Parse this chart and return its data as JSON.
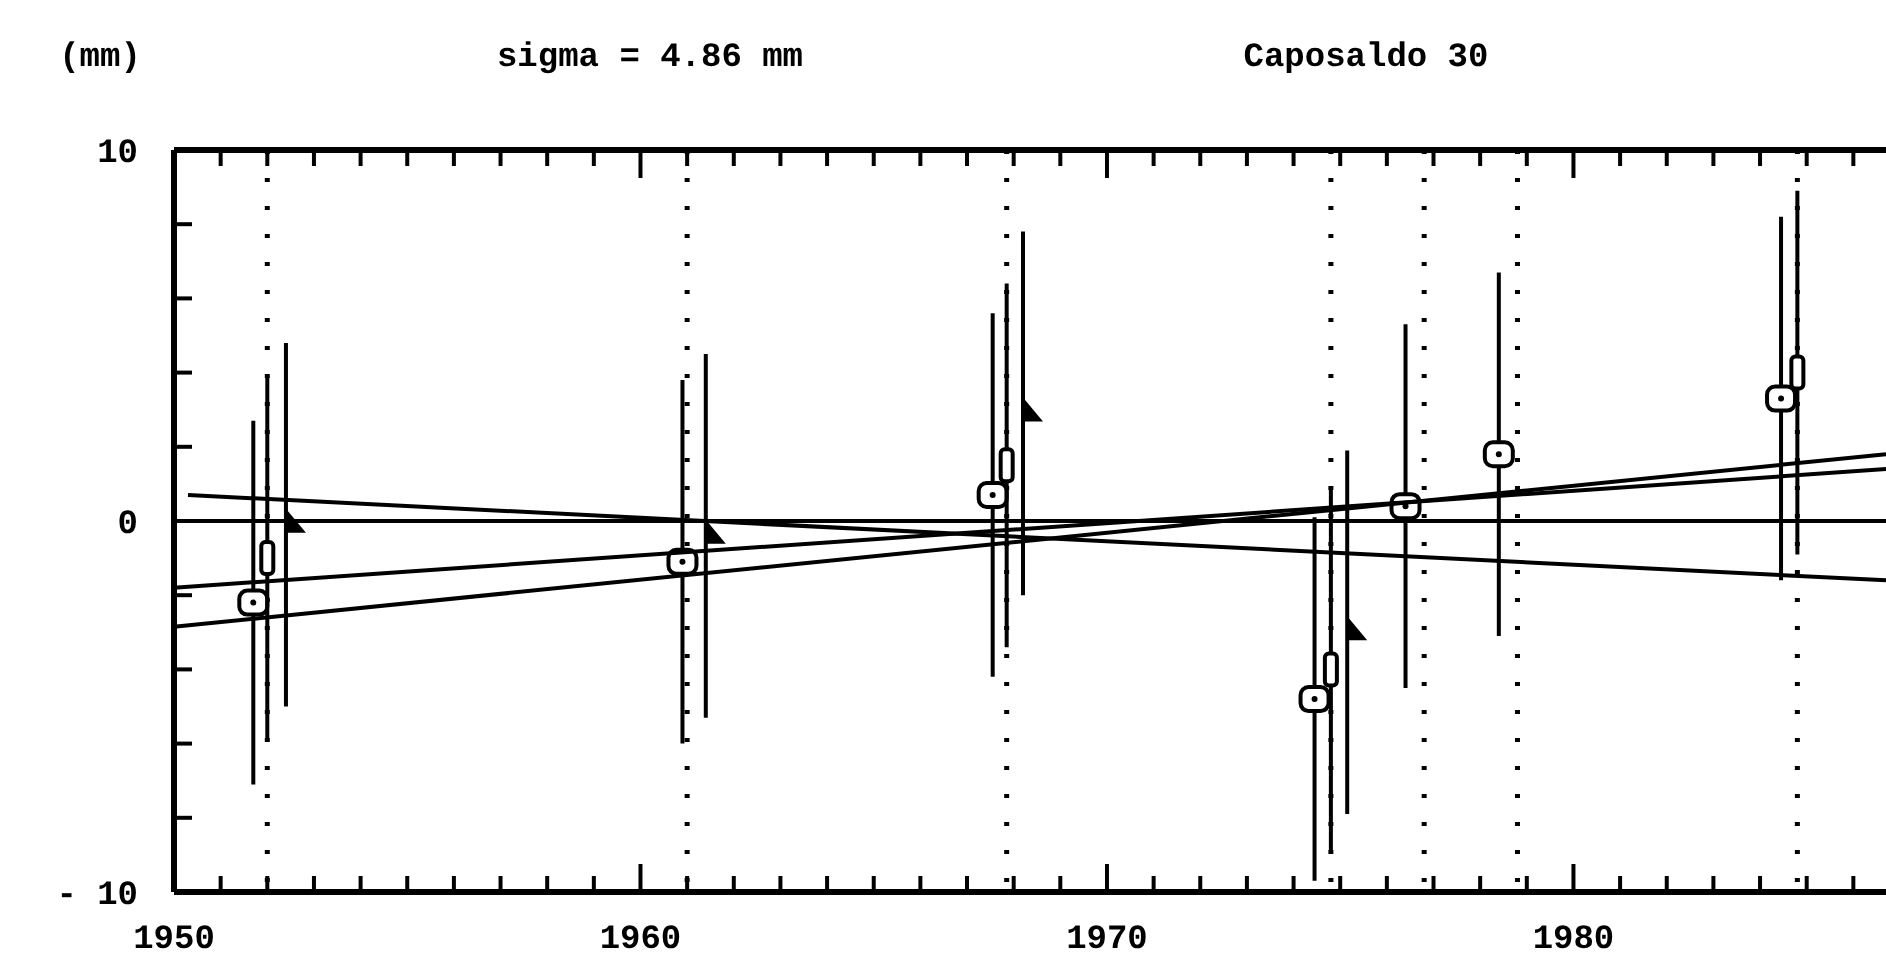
{
  "chart_data": {
    "type": "scatter",
    "title": "Caposaldo 30",
    "subtitle": "sigma = 4.86 mm",
    "ylabel": "(mm)",
    "xlim": [
      1950,
      1986.7
    ],
    "ylim": [
      -10,
      10
    ],
    "xticks": [
      1950,
      {
        "value": 1951,
        "label": null
      },
      {
        "value": 1952,
        "label": null
      },
      {
        "value": 1953,
        "label": null
      },
      {
        "value": 1954,
        "label": null
      },
      {
        "value": 1955,
        "label": null
      },
      {
        "value": 1956,
        "label": null
      },
      {
        "value": 1957,
        "label": null
      },
      {
        "value": 1958,
        "label": null
      },
      {
        "value": 1959,
        "label": null
      },
      1960,
      {
        "value": 1961,
        "label": null
      },
      {
        "value": 1962,
        "label": null
      },
      {
        "value": 1963,
        "label": null
      },
      {
        "value": 1964,
        "label": null
      },
      {
        "value": 1965,
        "label": null
      },
      {
        "value": 1966,
        "label": null
      },
      {
        "value": 1967,
        "label": null
      },
      {
        "value": 1968,
        "label": null
      },
      {
        "value": 1969,
        "label": null
      },
      1970,
      {
        "value": 1971,
        "label": null
      },
      {
        "value": 1972,
        "label": null
      },
      {
        "value": 1973,
        "label": null
      },
      {
        "value": 1974,
        "label": null
      },
      {
        "value": 1975,
        "label": null
      },
      {
        "value": 1976,
        "label": null
      },
      {
        "value": 1977,
        "label": null
      },
      {
        "value": 1978,
        "label": null
      },
      {
        "value": 1979,
        "label": null
      },
      1980,
      {
        "value": 1981,
        "label": null
      },
      {
        "value": 1982,
        "label": null
      },
      {
        "value": 1983,
        "label": null
      },
      {
        "value": 1984,
        "label": null
      },
      {
        "value": 1985,
        "label": null
      },
      {
        "value": 1986,
        "label": null
      }
    ],
    "yticks": [
      {
        "value": -10,
        "label": "- 10"
      },
      {
        "value": -8,
        "label": null
      },
      {
        "value": -6,
        "label": null
      },
      {
        "value": -4,
        "label": null
      },
      {
        "value": -2,
        "label": null
      },
      0,
      {
        "value": 2,
        "label": null
      },
      {
        "value": 4,
        "label": null
      },
      {
        "value": 6,
        "label": null
      },
      {
        "value": 8,
        "label": null
      },
      10
    ],
    "series": [
      {
        "type": "scatter",
        "marker": "square",
        "color": "#000000",
        "x": [
          1951.7,
          1960.9,
          1967.55,
          1974.45,
          1976.4,
          1978.4,
          1984.45
        ],
        "values": [
          -2.2,
          -1.1,
          0.7,
          -4.8,
          0.4,
          1.8,
          3.3
        ],
        "errors": [
          4.9,
          4.9,
          4.9,
          4.9,
          4.9,
          4.9,
          4.9
        ]
      },
      {
        "type": "scatter",
        "marker": "square",
        "color": "#000000",
        "x": [
          1952,
          1967.85,
          1974.8,
          1984.8
        ],
        "values": [
          -1,
          1.5,
          -4,
          4
        ],
        "errors": [
          4.9,
          4.9,
          4.9,
          4.9
        ]
      },
      {
        "type": "scatter",
        "marker": "triangle",
        "color": "#000000",
        "x": [
          1952.4,
          1961.4,
          1968.2,
          1975.15
        ],
        "values": [
          -0.1,
          -0.4,
          2.9,
          -3
        ],
        "errors": [
          4.9,
          4.9,
          4.9,
          4.9
        ]
      },
      {
        "type": "line",
        "marker": "none",
        "color": "#000000",
        "x": [
          1950.3,
          1986.7
        ],
        "values": [
          0.7,
          -1.6
        ]
      },
      {
        "type": "line",
        "marker": "none",
        "color": "#000000",
        "x": [
          1950,
          1986.7
        ],
        "values": [
          -1.8,
          1.4
        ]
      },
      {
        "type": "line",
        "marker": "none",
        "color": "#000000",
        "x": [
          1950,
          1986.7
        ],
        "values": [
          -2.85,
          1.8
        ]
      }
    ],
    "ref_lines": [
      {
        "axis": "y",
        "value": 0,
        "color": "#000000",
        "line_style": "solid"
      },
      {
        "axis": "x",
        "value": 1952,
        "color": "#000000",
        "line_style": "dotted"
      },
      {
        "axis": "x",
        "value": 1961,
        "color": "#000000",
        "line_style": "dotted"
      },
      {
        "axis": "x",
        "value": 1967.85,
        "color": "#000000",
        "line_style": "dotted"
      },
      {
        "axis": "x",
        "value": 1974.8,
        "color": "#000000",
        "line_style": "dotted"
      },
      {
        "axis": "x",
        "value": 1976.8,
        "color": "#000000",
        "line_style": "dotted"
      },
      {
        "axis": "x",
        "value": 1978.8,
        "color": "#000000",
        "line_style": "dotted"
      },
      {
        "axis": "x",
        "value": 1984.8,
        "color": "#000000",
        "line_style": "dotted"
      }
    ]
  }
}
